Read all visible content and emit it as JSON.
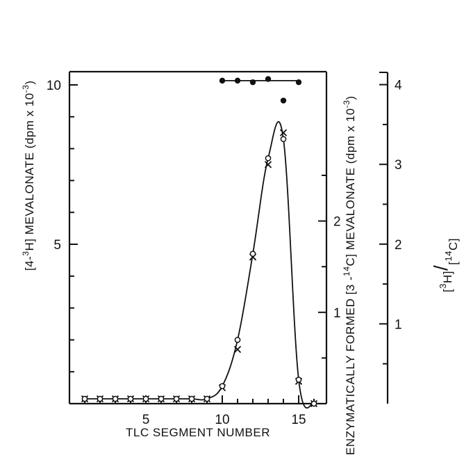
{
  "chart_data": {
    "type": "line",
    "x": [
      1,
      2,
      3,
      4,
      5,
      6,
      7,
      8,
      9,
      10,
      11,
      12,
      13,
      14,
      15,
      16
    ],
    "xlim": [
      0,
      17
    ],
    "xticks": [
      5,
      10,
      15
    ],
    "xlabel": "TLC SEGMENT NUMBER",
    "y_left": {
      "label_parts": [
        "[4-",
        "3",
        "H] MEVALONATE (dpm x 10",
        "-3",
        ")"
      ],
      "ticks": [
        5,
        10
      ],
      "lim": [
        0,
        10.5
      ]
    },
    "y_mid": {
      "label_parts": [
        "ENZYMATICALLY FORMED [3 -",
        "14",
        "C] MEVALONATE (dpm x 10",
        "-3",
        ")"
      ],
      "ticks": [
        1,
        2
      ],
      "lim": [
        0,
        2.6
      ]
    },
    "y_right": {
      "label_parts": [
        "[",
        "3",
        "H]",
        "/",
        "[",
        "14",
        "C]"
      ],
      "ticks": [
        1,
        2,
        3,
        4
      ],
      "lim": [
        0,
        4.1
      ]
    },
    "series": [
      {
        "marker": "open-circle",
        "axis": "left",
        "values": [
          0.15,
          0.15,
          0.15,
          0.15,
          0.15,
          0.15,
          0.15,
          0.15,
          0.15,
          0.55,
          2.0,
          4.7,
          7.7,
          8.3,
          0.75,
          0.0
        ]
      },
      {
        "marker": "x",
        "axis": "left",
        "values": [
          0.15,
          0.15,
          0.15,
          0.15,
          0.15,
          0.15,
          0.15,
          0.15,
          0.15,
          0.5,
          1.7,
          4.6,
          7.5,
          8.5,
          0.7,
          0.0
        ]
      },
      {
        "marker": "filled-circle",
        "axis": "right",
        "x": [
          10,
          11,
          12,
          13,
          14,
          15
        ],
        "values": [
          4.05,
          4.05,
          4.03,
          4.07,
          3.8,
          4.03
        ],
        "mean_line": 4.05
      }
    ]
  }
}
